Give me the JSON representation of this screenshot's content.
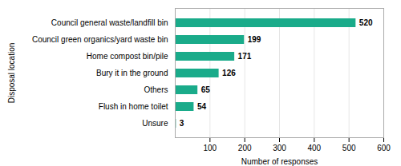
{
  "chart_data": {
    "type": "bar",
    "orientation": "horizontal",
    "categories": [
      "Unsure",
      "Flush in home toilet",
      "Others",
      "Bury it in the ground",
      "Home compost bin/pile",
      "Council green organics/yard waste bin",
      "Council general waste/landfill bin"
    ],
    "values": [
      3,
      54,
      65,
      126,
      171,
      199,
      520
    ],
    "color": "#1aab8a",
    "xlabel": "Number of responses",
    "ylabel": "Disposal location",
    "xlim": [
      0,
      600
    ],
    "xticks": [
      100,
      200,
      300,
      400,
      500,
      600
    ],
    "grid": true,
    "data_labels": true
  }
}
